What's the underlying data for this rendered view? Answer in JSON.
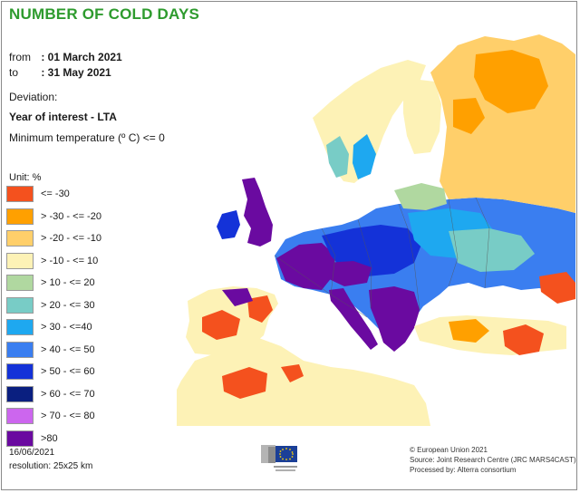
{
  "header": {
    "title": "NUMBER OF COLD DAYS",
    "from_label": "from",
    "from_value": ": 01 March 2021",
    "to_label": "to",
    "to_value": ": 31 May 2021",
    "deviation_label": "Deviation:",
    "deviation_value": "Year of interest - LTA",
    "metric": "Minimum temperature (º C) <= 0"
  },
  "legend": {
    "unit": "Unit:  %",
    "items": [
      {
        "label": "<= -30",
        "color": "#f4511e"
      },
      {
        "label": "> -30 - <= -20",
        "color": "#ffa000"
      },
      {
        "label": "> -20 - <= -10",
        "color": "#ffcf6a"
      },
      {
        "label": "> -10 - <= 10",
        "color": "#fdf2b6"
      },
      {
        "label": "> 10 - <= 20",
        "color": "#b0d8a0"
      },
      {
        "label": "> 20 - <= 30",
        "color": "#78ccc6"
      },
      {
        "label": "> 30 - <=40",
        "color": "#1ea8f0"
      },
      {
        "label": "> 40 - <= 50",
        "color": "#3a7ef0"
      },
      {
        "label": "> 50 - <= 60",
        "color": "#1432d8"
      },
      {
        "label": "> 60 - <= 70",
        "color": "#0a1f80"
      },
      {
        "label": "> 70 - <= 80",
        "color": "#cc66ee"
      },
      {
        "label": ">80",
        "color": "#6a0aa0"
      }
    ]
  },
  "footer": {
    "date": "16/06/2021",
    "resolution": "resolution:  25x25 km",
    "credits": [
      "© European Union 2021",
      "Source: Joint Research Centre (JRC MARS4CAST)",
      "Processed by: Alterra consortium"
    ]
  }
}
